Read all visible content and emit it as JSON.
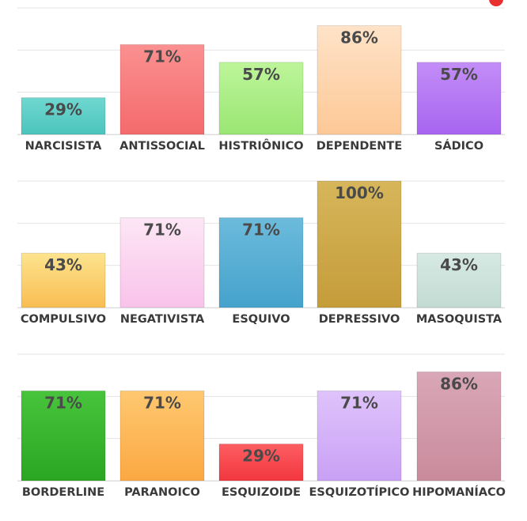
{
  "chart_data": [
    {
      "type": "bar",
      "categories": [
        "NARCISISTA",
        "ANTISSOCIAL",
        "HISTRIÔNICO",
        "DEPENDENTE",
        "SÁDICO"
      ],
      "values": [
        29,
        71,
        57,
        86,
        57
      ],
      "labels": [
        "29%",
        "71%",
        "57%",
        "86%",
        "57%"
      ],
      "colors": [
        [
          "#6fd8d0",
          "#4cc4bc"
        ],
        [
          "#fb9090",
          "#f46a6c"
        ],
        [
          "#bdf59a",
          "#9ae673"
        ],
        [
          "#ffe3c8",
          "#fdc896"
        ],
        [
          "#c38df7",
          "#a765f0"
        ]
      ],
      "ylim": [
        0,
        100
      ],
      "grid": true
    },
    {
      "type": "bar",
      "categories": [
        "COMPULSIVO",
        "NEGATIVISTA",
        "ESQUIVO",
        "DEPRESSIVO",
        "MASOQUISTA"
      ],
      "values": [
        43,
        71,
        71,
        100,
        43
      ],
      "labels": [
        "43%",
        "71%",
        "71%",
        "100%",
        "43%"
      ],
      "colors": [
        [
          "#fde48e",
          "#f9bd52"
        ],
        [
          "#fde6f5",
          "#f9c3ea"
        ],
        [
          "#6cbbdc",
          "#45a2cc"
        ],
        [
          "#d6b65a",
          "#c59c3a"
        ],
        [
          "#d7e9e3",
          "#c2dbd3"
        ]
      ],
      "ylim": [
        0,
        100
      ],
      "grid": true
    },
    {
      "type": "bar",
      "categories": [
        "BORDERLINE",
        "PARANOICO",
        "ESQUIZOIDE",
        "ESQUIZOTÍPICO",
        "HIPOMANÍACO"
      ],
      "values": [
        71,
        71,
        29,
        71,
        86
      ],
      "labels": [
        "71%",
        "71%",
        "29%",
        "71%",
        "86%"
      ],
      "colors": [
        [
          "#48c43c",
          "#2aa622"
        ],
        [
          "#fec870",
          "#fba842"
        ],
        [
          "#fd5e62",
          "#f2363e"
        ],
        [
          "#dfc3fb",
          "#c9a0f5"
        ],
        [
          "#d9a7b7",
          "#c98b9c"
        ]
      ],
      "ylim": [
        0,
        100
      ],
      "grid": true
    }
  ]
}
